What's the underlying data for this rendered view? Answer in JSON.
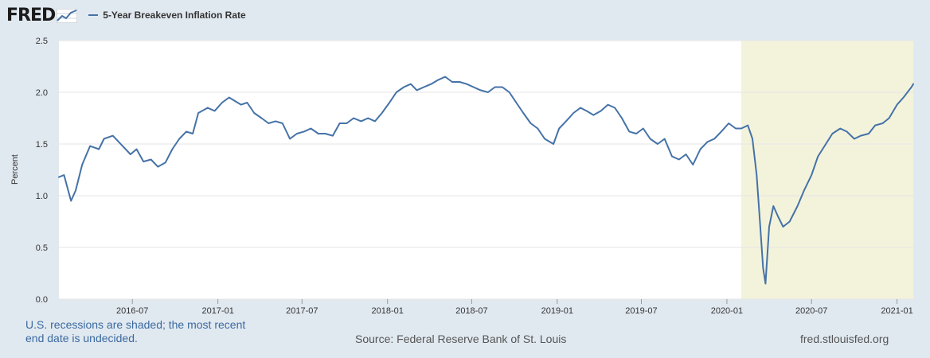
{
  "header": {
    "logo_text": "FRED",
    "series_label": "5-Year Breakeven Inflation Rate"
  },
  "footer": {
    "recession_note": "U.S. recessions are shaded; the most recent end date is undecided.",
    "source": "Source: Federal Reserve Bank of St. Louis",
    "url": "fred.stlouisfed.org"
  },
  "chart_data": {
    "type": "line",
    "ylabel": "Percent",
    "xlabel": "",
    "ylim": [
      0.0,
      2.5
    ],
    "xlim": [
      "2016-01-25",
      "2021-02-05"
    ],
    "y_ticks": [
      "0.0",
      "0.5",
      "1.0",
      "1.5",
      "2.0",
      "2.5"
    ],
    "x_ticks": [
      "2016-07",
      "2017-01",
      "2017-07",
      "2018-01",
      "2018-07",
      "2019-01",
      "2019-07",
      "2020-01",
      "2020-07",
      "2021-01"
    ],
    "grid": true,
    "line_color": "#4572a7",
    "recession_color": "#f3f3dc",
    "recessions": [
      {
        "start": "2020-02-01",
        "end": "2021-02-05"
      }
    ],
    "series": [
      {
        "name": "5-Year Breakeven Inflation Rate",
        "x": [
          "2016-01-25",
          "2016-02-05",
          "2016-02-11",
          "2016-02-20",
          "2016-03-01",
          "2016-03-15",
          "2016-04-01",
          "2016-04-20",
          "2016-05-01",
          "2016-05-20",
          "2016-06-10",
          "2016-06-27",
          "2016-07-10",
          "2016-07-25",
          "2016-08-10",
          "2016-08-25",
          "2016-09-10",
          "2016-09-25",
          "2016-10-10",
          "2016-10-25",
          "2016-11-08",
          "2016-11-20",
          "2016-12-10",
          "2016-12-25",
          "2017-01-10",
          "2017-01-25",
          "2017-02-05",
          "2017-02-20",
          "2017-03-05",
          "2017-03-20",
          "2017-04-05",
          "2017-04-20",
          "2017-05-05",
          "2017-05-20",
          "2017-06-05",
          "2017-06-20",
          "2017-07-05",
          "2017-07-20",
          "2017-08-05",
          "2017-08-20",
          "2017-09-05",
          "2017-09-20",
          "2017-10-05",
          "2017-10-20",
          "2017-11-05",
          "2017-11-20",
          "2017-12-05",
          "2017-12-20",
          "2018-01-05",
          "2018-01-20",
          "2018-02-05",
          "2018-02-20",
          "2018-03-05",
          "2018-03-20",
          "2018-04-05",
          "2018-04-20",
          "2018-05-05",
          "2018-05-20",
          "2018-06-05",
          "2018-06-20",
          "2018-07-05",
          "2018-07-20",
          "2018-08-05",
          "2018-08-20",
          "2018-09-05",
          "2018-09-20",
          "2018-10-05",
          "2018-10-20",
          "2018-11-05",
          "2018-11-20",
          "2018-12-05",
          "2018-12-24",
          "2019-01-05",
          "2019-01-20",
          "2019-02-05",
          "2019-02-20",
          "2019-03-05",
          "2019-03-20",
          "2019-04-05",
          "2019-04-20",
          "2019-05-05",
          "2019-05-20",
          "2019-06-05",
          "2019-06-20",
          "2019-07-05",
          "2019-07-20",
          "2019-08-05",
          "2019-08-20",
          "2019-09-05",
          "2019-09-20",
          "2019-10-05",
          "2019-10-20",
          "2019-11-05",
          "2019-11-20",
          "2019-12-05",
          "2019-12-20",
          "2020-01-05",
          "2020-01-20",
          "2020-02-01",
          "2020-02-15",
          "2020-02-25",
          "2020-03-05",
          "2020-03-12",
          "2020-03-19",
          "2020-03-24",
          "2020-04-01",
          "2020-04-10",
          "2020-04-20",
          "2020-05-01",
          "2020-05-15",
          "2020-06-01",
          "2020-06-15",
          "2020-07-01",
          "2020-07-15",
          "2020-08-01",
          "2020-08-15",
          "2020-09-01",
          "2020-09-15",
          "2020-10-01",
          "2020-10-15",
          "2020-11-01",
          "2020-11-15",
          "2020-12-01",
          "2020-12-15",
          "2021-01-01",
          "2021-01-15",
          "2021-02-01",
          "2021-02-05"
        ],
        "y": [
          1.18,
          1.2,
          1.1,
          0.95,
          1.05,
          1.3,
          1.48,
          1.45,
          1.55,
          1.58,
          1.48,
          1.4,
          1.45,
          1.33,
          1.35,
          1.28,
          1.32,
          1.45,
          1.55,
          1.62,
          1.6,
          1.8,
          1.85,
          1.82,
          1.9,
          1.95,
          1.92,
          1.88,
          1.9,
          1.8,
          1.75,
          1.7,
          1.72,
          1.7,
          1.55,
          1.6,
          1.62,
          1.65,
          1.6,
          1.6,
          1.58,
          1.7,
          1.7,
          1.75,
          1.72,
          1.75,
          1.72,
          1.8,
          1.9,
          2.0,
          2.05,
          2.08,
          2.02,
          2.05,
          2.08,
          2.12,
          2.15,
          2.1,
          2.1,
          2.08,
          2.05,
          2.02,
          2.0,
          2.05,
          2.05,
          2.0,
          1.9,
          1.8,
          1.7,
          1.65,
          1.55,
          1.5,
          1.65,
          1.72,
          1.8,
          1.85,
          1.82,
          1.78,
          1.82,
          1.88,
          1.85,
          1.75,
          1.62,
          1.6,
          1.65,
          1.55,
          1.5,
          1.55,
          1.38,
          1.35,
          1.4,
          1.3,
          1.45,
          1.52,
          1.55,
          1.62,
          1.7,
          1.65,
          1.65,
          1.68,
          1.55,
          1.2,
          0.75,
          0.3,
          0.15,
          0.7,
          0.9,
          0.8,
          0.7,
          0.75,
          0.9,
          1.05,
          1.2,
          1.38,
          1.5,
          1.6,
          1.65,
          1.62,
          1.55,
          1.58,
          1.6,
          1.68,
          1.7,
          1.75,
          1.88,
          1.95,
          2.05,
          2.08
        ]
      }
    ]
  }
}
